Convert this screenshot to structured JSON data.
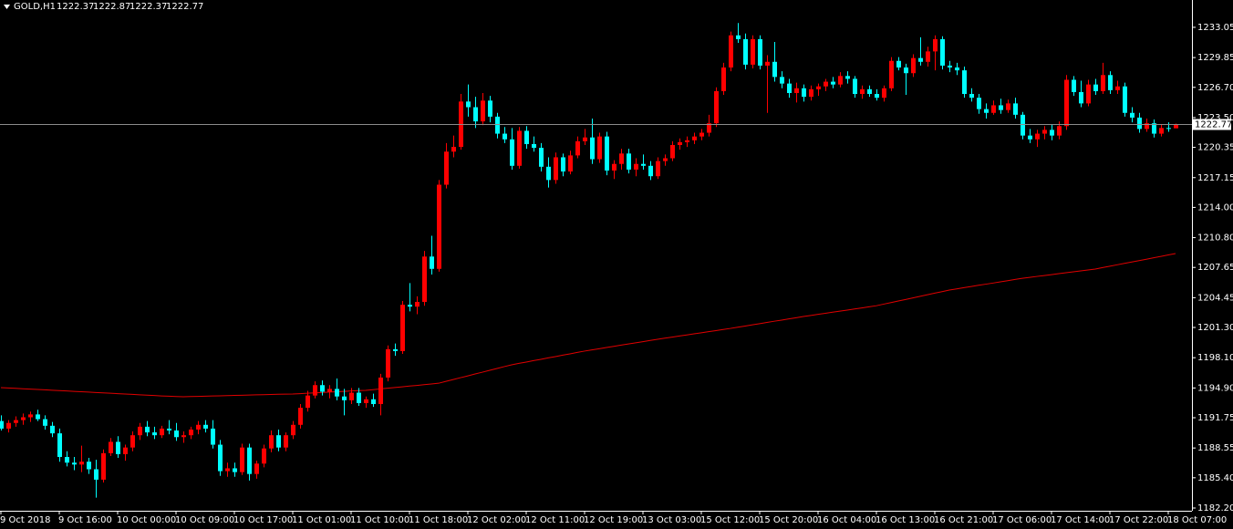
{
  "chart_data": {
    "type": "candlestick",
    "title": "GOLD,H1",
    "up_color": "#ff0000",
    "down_color": "#00ffff",
    "ylim": [
      1181.91,
      1235.94
    ],
    "yticks": [
      1233.05,
      1229.85,
      {
        "value": 1226.7,
        "label": "1226.70"
      },
      {
        "value": 1223.5,
        "label": "1223.50"
      },
      1220.35,
      1217.15,
      {
        "value": 1214.0,
        "label": "1214.00"
      },
      {
        "value": 1210.8,
        "label": "1210.80"
      },
      1207.65,
      1204.45,
      {
        "value": 1201.3,
        "label": "1201.30"
      },
      {
        "value": 1198.1,
        "label": "1198.10"
      },
      {
        "value": 1194.9,
        "label": "1194.90"
      },
      1191.75,
      1188.55,
      {
        "value": 1185.4,
        "label": "1185.40"
      },
      {
        "value": 1182.2,
        "label": "1182.20"
      }
    ],
    "xticks": [
      {
        "value": 0,
        "label": "9 Oct 2018"
      },
      {
        "value": 8,
        "label": "9 Oct 16:00"
      },
      {
        "value": 16,
        "label": "10 Oct 00:00"
      },
      {
        "value": 24,
        "label": "10 Oct 09:00"
      },
      {
        "value": 32,
        "label": "10 Oct 17:00"
      },
      {
        "value": 40,
        "label": "11 Oct 01:00"
      },
      {
        "value": 48,
        "label": "11 Oct 10:00"
      },
      {
        "value": 56,
        "label": "11 Oct 18:00"
      },
      {
        "value": 64,
        "label": "12 Oct 02:00"
      },
      {
        "value": 72,
        "label": "12 Oct 11:00"
      },
      {
        "value": 80,
        "label": "12 Oct 19:00"
      },
      {
        "value": 88,
        "label": "13 Oct 03:00"
      },
      {
        "value": 96,
        "label": "15 Oct 12:00"
      },
      {
        "value": 104,
        "label": "15 Oct 20:00"
      },
      {
        "value": 112,
        "label": "16 Oct 04:00"
      },
      {
        "value": 120,
        "label": "16 Oct 13:00"
      },
      {
        "value": 128,
        "label": "16 Oct 21:00"
      },
      {
        "value": 136,
        "label": "17 Oct 06:00"
      },
      {
        "value": 144,
        "label": "17 Oct 14:00"
      },
      {
        "value": 152,
        "label": "17 Oct 22:00"
      },
      {
        "value": 160,
        "label": "18 Oct 07:00"
      }
    ],
    "ohlc": [
      [
        1191.4,
        1192.0,
        1190.4,
        1190.6
      ],
      [
        1190.6,
        1191.5,
        1190.2,
        1191.2
      ],
      [
        1191.2,
        1191.9,
        1190.8,
        1191.5
      ],
      [
        1191.5,
        1192.2,
        1191.0,
        1191.8
      ],
      [
        1191.8,
        1192.4,
        1191.3,
        1192.1
      ],
      [
        1192.1,
        1192.6,
        1191.4,
        1191.6
      ],
      [
        1191.6,
        1192.0,
        1190.5,
        1190.9
      ],
      [
        1190.9,
        1191.3,
        1189.7,
        1190.1
      ],
      [
        1190.1,
        1190.6,
        1187.1,
        1187.6
      ],
      [
        1187.6,
        1188.2,
        1186.6,
        1187.0
      ],
      [
        1187.0,
        1187.6,
        1186.2,
        1186.8
      ],
      [
        1186.8,
        1188.8,
        1186.0,
        1187.1
      ],
      [
        1187.1,
        1187.5,
        1185.8,
        1186.3
      ],
      [
        1186.3,
        1187.3,
        1183.3,
        1185.2
      ],
      [
        1185.2,
        1188.4,
        1184.9,
        1188.0
      ],
      [
        1188.0,
        1189.6,
        1187.7,
        1189.2
      ],
      [
        1189.2,
        1189.8,
        1187.5,
        1187.9
      ],
      [
        1187.9,
        1188.9,
        1187.2,
        1188.6
      ],
      [
        1188.6,
        1190.3,
        1188.2,
        1189.9
      ],
      [
        1189.9,
        1191.2,
        1189.4,
        1190.8
      ],
      [
        1190.8,
        1191.4,
        1189.8,
        1190.2
      ],
      [
        1190.2,
        1190.8,
        1189.5,
        1189.9
      ],
      [
        1189.9,
        1190.9,
        1189.6,
        1190.6
      ],
      [
        1190.6,
        1191.5,
        1190.0,
        1190.4
      ],
      [
        1190.4,
        1191.2,
        1189.3,
        1189.7
      ],
      [
        1189.7,
        1190.3,
        1189.1,
        1189.9
      ],
      [
        1189.9,
        1190.8,
        1189.5,
        1190.5
      ],
      [
        1190.5,
        1191.4,
        1190.0,
        1191.0
      ],
      [
        1191.0,
        1191.5,
        1190.2,
        1190.6
      ],
      [
        1190.6,
        1191.5,
        1188.5,
        1188.9
      ],
      [
        1188.9,
        1189.4,
        1185.6,
        1186.1
      ],
      [
        1186.1,
        1187.0,
        1185.5,
        1186.4
      ],
      [
        1186.4,
        1187.0,
        1185.5,
        1186.0
      ],
      [
        1186.0,
        1189.0,
        1185.7,
        1188.6
      ],
      [
        1188.6,
        1189.0,
        1185.1,
        1185.8
      ],
      [
        1185.8,
        1187.2,
        1185.3,
        1186.9
      ],
      [
        1186.9,
        1188.9,
        1186.5,
        1188.5
      ],
      [
        1188.5,
        1190.4,
        1188.1,
        1189.9
      ],
      [
        1189.9,
        1190.5,
        1188.2,
        1188.6
      ],
      [
        1188.6,
        1190.2,
        1188.2,
        1189.9
      ],
      [
        1189.9,
        1191.4,
        1189.5,
        1191.0
      ],
      [
        1191.0,
        1193.2,
        1190.6,
        1192.8
      ],
      [
        1192.8,
        1194.6,
        1192.4,
        1194.1
      ],
      [
        1194.1,
        1195.6,
        1193.8,
        1195.2
      ],
      [
        1195.2,
        1195.7,
        1194.1,
        1194.5
      ],
      [
        1194.5,
        1195.2,
        1193.8,
        1194.8
      ],
      [
        1194.8,
        1195.9,
        1193.6,
        1194.0
      ],
      [
        1194.0,
        1194.8,
        1192.0,
        1193.6
      ],
      [
        1193.6,
        1194.9,
        1193.2,
        1194.4
      ],
      [
        1194.4,
        1194.9,
        1193.0,
        1193.3
      ],
      [
        1193.3,
        1194.0,
        1192.8,
        1193.7
      ],
      [
        1193.7,
        1194.3,
        1192.9,
        1193.2
      ],
      [
        1193.2,
        1196.4,
        1192.0,
        1196.0
      ],
      [
        1196.0,
        1199.4,
        1195.6,
        1199.0
      ],
      [
        1199.0,
        1199.6,
        1198.3,
        1198.8
      ],
      [
        1198.8,
        1204.1,
        1198.5,
        1203.7
      ],
      [
        1203.7,
        1206.0,
        1203.0,
        1203.5
      ],
      [
        1203.5,
        1204.6,
        1202.7,
        1204.0
      ],
      [
        1204.0,
        1209.4,
        1203.6,
        1208.8
      ],
      [
        1208.8,
        1211.0,
        1206.9,
        1207.5
      ],
      [
        1207.5,
        1216.9,
        1207.2,
        1216.4
      ],
      [
        1216.4,
        1220.8,
        1216.0,
        1219.9
      ],
      [
        1219.9,
        1221.6,
        1219.3,
        1220.4
      ],
      [
        1220.4,
        1226.0,
        1220.1,
        1225.2
      ],
      [
        1225.2,
        1227.0,
        1223.6,
        1224.6
      ],
      [
        1224.6,
        1225.7,
        1222.4,
        1223.1
      ],
      [
        1223.1,
        1226.1,
        1222.7,
        1225.3
      ],
      [
        1225.3,
        1225.8,
        1223.0,
        1223.6
      ],
      [
        1223.6,
        1224.0,
        1221.3,
        1221.8
      ],
      [
        1221.8,
        1222.5,
        1220.8,
        1221.2
      ],
      [
        1221.2,
        1222.4,
        1218.0,
        1218.4
      ],
      [
        1218.4,
        1222.5,
        1218.1,
        1222.1
      ],
      [
        1222.1,
        1222.6,
        1220.2,
        1220.7
      ],
      [
        1220.7,
        1221.5,
        1219.9,
        1220.3
      ],
      [
        1220.3,
        1220.8,
        1217.8,
        1218.3
      ],
      [
        1218.3,
        1219.3,
        1216.1,
        1216.9
      ],
      [
        1216.9,
        1219.8,
        1216.5,
        1219.3
      ],
      [
        1219.3,
        1219.7,
        1217.3,
        1217.8
      ],
      [
        1217.8,
        1220.0,
        1217.5,
        1219.5
      ],
      [
        1219.5,
        1221.5,
        1219.2,
        1221.0
      ],
      [
        1221.0,
        1222.3,
        1220.6,
        1221.4
      ],
      [
        1221.4,
        1223.4,
        1218.6,
        1219.1
      ],
      [
        1219.1,
        1221.9,
        1218.7,
        1221.5
      ],
      [
        1221.5,
        1222.0,
        1217.4,
        1217.9
      ],
      [
        1217.9,
        1219.0,
        1217.0,
        1218.6
      ],
      [
        1218.6,
        1220.2,
        1218.0,
        1219.7
      ],
      [
        1219.7,
        1220.2,
        1217.6,
        1218.0
      ],
      [
        1218.0,
        1219.2,
        1217.3,
        1218.6
      ],
      [
        1218.6,
        1219.6,
        1218.0,
        1218.4
      ],
      [
        1218.4,
        1218.9,
        1216.9,
        1217.3
      ],
      [
        1217.3,
        1219.3,
        1217.0,
        1218.9
      ],
      [
        1218.9,
        1219.6,
        1218.4,
        1219.2
      ],
      [
        1219.2,
        1221.0,
        1218.9,
        1220.6
      ],
      [
        1220.6,
        1221.3,
        1220.1,
        1220.9
      ],
      [
        1220.9,
        1221.5,
        1220.4,
        1221.1
      ],
      [
        1221.1,
        1221.9,
        1220.7,
        1221.5
      ],
      [
        1221.5,
        1222.3,
        1221.1,
        1221.9
      ],
      [
        1221.9,
        1223.8,
        1221.5,
        1222.9
      ],
      [
        1222.9,
        1226.7,
        1222.5,
        1226.3
      ],
      [
        1226.3,
        1229.3,
        1225.9,
        1228.8
      ],
      [
        1228.8,
        1232.6,
        1228.4,
        1232.2
      ],
      [
        1232.2,
        1233.5,
        1231.4,
        1231.8
      ],
      [
        1231.8,
        1232.4,
        1228.6,
        1229.1
      ],
      [
        1229.1,
        1232.2,
        1228.7,
        1231.8
      ],
      [
        1231.8,
        1232.2,
        1228.6,
        1229.0
      ],
      [
        1229.0,
        1230.1,
        1224.0,
        1229.4
      ],
      [
        1229.4,
        1231.5,
        1227.3,
        1227.8
      ],
      [
        1227.8,
        1228.4,
        1226.6,
        1227.1
      ],
      [
        1227.1,
        1227.6,
        1225.6,
        1226.1
      ],
      [
        1226.1,
        1227.2,
        1225.1,
        1226.6
      ],
      [
        1226.6,
        1227.0,
        1225.2,
        1225.7
      ],
      [
        1225.7,
        1226.9,
        1225.3,
        1226.5
      ],
      [
        1226.5,
        1227.1,
        1225.8,
        1226.8
      ],
      [
        1226.8,
        1227.6,
        1226.3,
        1227.3
      ],
      [
        1227.3,
        1227.8,
        1226.6,
        1227.0
      ],
      [
        1227.0,
        1228.3,
        1226.7,
        1227.9
      ],
      [
        1227.9,
        1228.4,
        1227.1,
        1227.6
      ],
      [
        1227.6,
        1227.9,
        1225.6,
        1226.0
      ],
      [
        1226.0,
        1226.9,
        1225.5,
        1226.5
      ],
      [
        1226.5,
        1226.9,
        1225.7,
        1226.0
      ],
      [
        1226.0,
        1226.5,
        1225.3,
        1225.6
      ],
      [
        1225.6,
        1226.9,
        1225.2,
        1226.6
      ],
      [
        1226.6,
        1229.9,
        1226.3,
        1229.5
      ],
      [
        1229.5,
        1229.9,
        1228.5,
        1228.8
      ],
      [
        1228.8,
        1229.2,
        1225.9,
        1228.2
      ],
      [
        1228.2,
        1230.2,
        1227.8,
        1229.8
      ],
      [
        1229.8,
        1232.0,
        1229.0,
        1229.4
      ],
      [
        1229.4,
        1231.0,
        1228.9,
        1230.5
      ],
      [
        1230.5,
        1232.2,
        1228.5,
        1231.8
      ],
      [
        1231.8,
        1232.1,
        1228.6,
        1229.0
      ],
      [
        1229.0,
        1229.5,
        1228.3,
        1228.8
      ],
      [
        1228.8,
        1229.3,
        1228.0,
        1228.5
      ],
      [
        1228.5,
        1228.9,
        1225.6,
        1226.0
      ],
      [
        1226.0,
        1226.6,
        1225.2,
        1225.6
      ],
      [
        1225.6,
        1226.0,
        1223.9,
        1224.4
      ],
      [
        1224.4,
        1225.0,
        1223.4,
        1224.0
      ],
      [
        1224.0,
        1225.3,
        1223.8,
        1224.8
      ],
      [
        1224.8,
        1225.5,
        1223.9,
        1224.3
      ],
      [
        1224.3,
        1225.4,
        1224.0,
        1225.0
      ],
      [
        1225.0,
        1225.6,
        1223.4,
        1223.8
      ],
      [
        1223.8,
        1224.1,
        1221.2,
        1221.6
      ],
      [
        1221.6,
        1222.3,
        1220.8,
        1221.2
      ],
      [
        1221.2,
        1222.2,
        1220.4,
        1221.8
      ],
      [
        1221.8,
        1222.6,
        1221.2,
        1222.2
      ],
      [
        1222.2,
        1222.8,
        1221.1,
        1221.6
      ],
      [
        1221.6,
        1223.1,
        1221.2,
        1222.6
      ],
      [
        1222.6,
        1228.0,
        1222.2,
        1227.5
      ],
      [
        1227.5,
        1227.9,
        1225.8,
        1226.2
      ],
      [
        1226.2,
        1227.4,
        1224.6,
        1225.0
      ],
      [
        1225.0,
        1227.5,
        1224.7,
        1227.0
      ],
      [
        1227.0,
        1227.6,
        1225.9,
        1226.3
      ],
      [
        1226.3,
        1229.3,
        1226.0,
        1228.0
      ],
      [
        1228.0,
        1228.4,
        1226.0,
        1226.4
      ],
      [
        1226.4,
        1227.4,
        1226.0,
        1226.8
      ],
      [
        1226.8,
        1227.2,
        1223.6,
        1224.0
      ],
      [
        1224.0,
        1224.6,
        1223.0,
        1223.5
      ],
      [
        1223.5,
        1224.0,
        1221.9,
        1222.3
      ],
      [
        1222.3,
        1223.4,
        1222.0,
        1222.9
      ],
      [
        1222.9,
        1223.3,
        1221.4,
        1221.8
      ],
      [
        1221.8,
        1222.8,
        1221.5,
        1222.4
      ],
      [
        1222.4,
        1223.0,
        1222.0,
        1222.3
      ],
      [
        1222.37,
        1222.87,
        1222.37,
        1222.77
      ]
    ],
    "line": {
      "color": "#e00000",
      "values": [
        1194.94,
        1194.9,
        1194.86,
        1194.82,
        1194.78,
        1194.74,
        1194.7,
        1194.66,
        1194.62,
        1194.58,
        1194.54,
        1194.5,
        1194.46,
        1194.42,
        1194.38,
        1194.34,
        1194.3,
        1194.26,
        1194.22,
        1194.18,
        1194.14,
        1194.1,
        1194.06,
        1194.03,
        1194.0,
        1193.97,
        1193.99,
        1194.01,
        1194.03,
        1194.05,
        1194.07,
        1194.09,
        1194.11,
        1194.13,
        1194.15,
        1194.17,
        1194.19,
        1194.21,
        1194.23,
        1194.25,
        1194.26,
        1194.3,
        1194.34,
        1194.38,
        1194.42,
        1194.46,
        1194.5,
        1194.54,
        1194.58,
        1194.62,
        1194.65,
        1194.72,
        1194.8,
        1194.87,
        1194.95,
        1195.02,
        1195.1,
        1195.17,
        1195.25,
        1195.32,
        1195.4,
        1195.6,
        1195.79,
        1195.99,
        1196.18,
        1196.38,
        1196.57,
        1196.77,
        1196.96,
        1197.16,
        1197.35,
        1197.5,
        1197.64,
        1197.79,
        1197.93,
        1198.08,
        1198.22,
        1198.37,
        1198.51,
        1198.66,
        1198.8,
        1198.93,
        1199.05,
        1199.18,
        1199.3,
        1199.43,
        1199.55,
        1199.68,
        1199.8,
        1199.93,
        1200.05,
        1200.17,
        1200.28,
        1200.4,
        1200.51,
        1200.63,
        1200.74,
        1200.86,
        1200.97,
        1201.09,
        1201.2,
        1201.33,
        1201.45,
        1201.58,
        1201.7,
        1201.83,
        1201.96,
        1202.08,
        1202.21,
        1202.33,
        1202.46,
        1202.57,
        1202.69,
        1202.8,
        1202.92,
        1203.03,
        1203.14,
        1203.26,
        1203.37,
        1203.49,
        1203.6,
        1203.77,
        1203.93,
        1204.1,
        1204.26,
        1204.43,
        1204.6,
        1204.76,
        1204.93,
        1205.09,
        1205.26,
        1205.38,
        1205.51,
        1205.63,
        1205.76,
        1205.88,
        1206.0,
        1206.13,
        1206.25,
        1206.38,
        1206.5,
        1206.6,
        1206.7,
        1206.79,
        1206.89,
        1206.99,
        1207.09,
        1207.19,
        1207.28,
        1207.38,
        1207.48,
        1207.63,
        1207.78,
        1207.93,
        1208.08,
        1208.23,
        1208.37,
        1208.52,
        1208.67,
        1208.82,
        1208.97,
        1209.12
      ]
    }
  }
}
